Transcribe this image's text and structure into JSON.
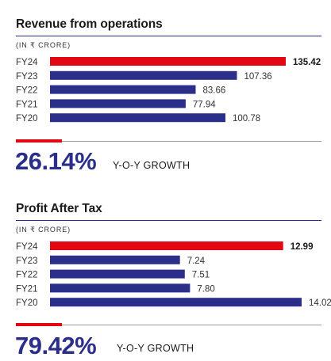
{
  "chart_data": [
    {
      "type": "bar",
      "orientation": "horizontal",
      "title": "Revenue from operations",
      "unit_label": "(IN ₹ CRORE)",
      "categories": [
        "FY24",
        "FY23",
        "FY22",
        "FY21",
        "FY20"
      ],
      "values": [
        135.42,
        107.36,
        83.66,
        77.94,
        100.78
      ],
      "value_labels": [
        "135.42",
        "107.36",
        "83.66",
        "77.94",
        "100.78"
      ],
      "highlight_category": "FY24",
      "growth_value": "26.14%",
      "growth_label": "Y-O-Y GROWTH"
    },
    {
      "type": "bar",
      "orientation": "horizontal",
      "title": "Profit After Tax",
      "unit_label": "(IN ₹ CRORE)",
      "categories": [
        "FY24",
        "FY23",
        "FY22",
        "FY21",
        "FY20"
      ],
      "values": [
        12.99,
        7.24,
        7.51,
        7.8,
        14.02
      ],
      "value_labels": [
        "12.99",
        "7.24",
        "7.51",
        "7.80",
        "14.02"
      ],
      "highlight_category": "FY24",
      "growth_value": "79.42%",
      "growth_label": "Y-O-Y GROWTH"
    }
  ],
  "colors": {
    "highlight_bar": "#e30613",
    "bar": "#2b2f8a",
    "growth_value": "#2b2f8a",
    "rule": "#2b2f8a",
    "growth_rule": "#999999",
    "growth_mark": "#e30613"
  }
}
